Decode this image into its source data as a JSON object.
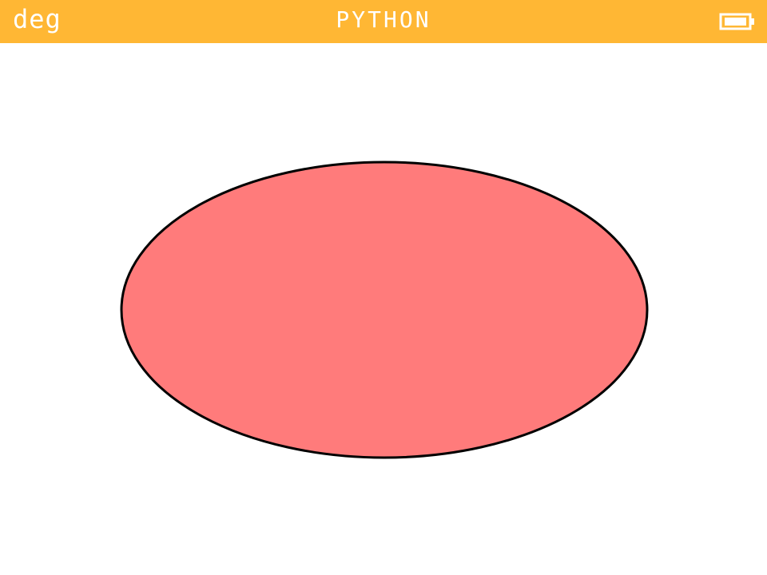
{
  "status_bar": {
    "angle_unit": "deg",
    "app_title": "PYTHON",
    "battery_icon": "battery-full-icon",
    "background_color": "#FFB734",
    "text_color": "#FFFFFF"
  },
  "canvas": {
    "background_color": "#FFFFFF",
    "shapes": [
      {
        "type": "ellipse",
        "fill_color": "#FF7B7B",
        "stroke_color": "#000000"
      }
    ]
  }
}
